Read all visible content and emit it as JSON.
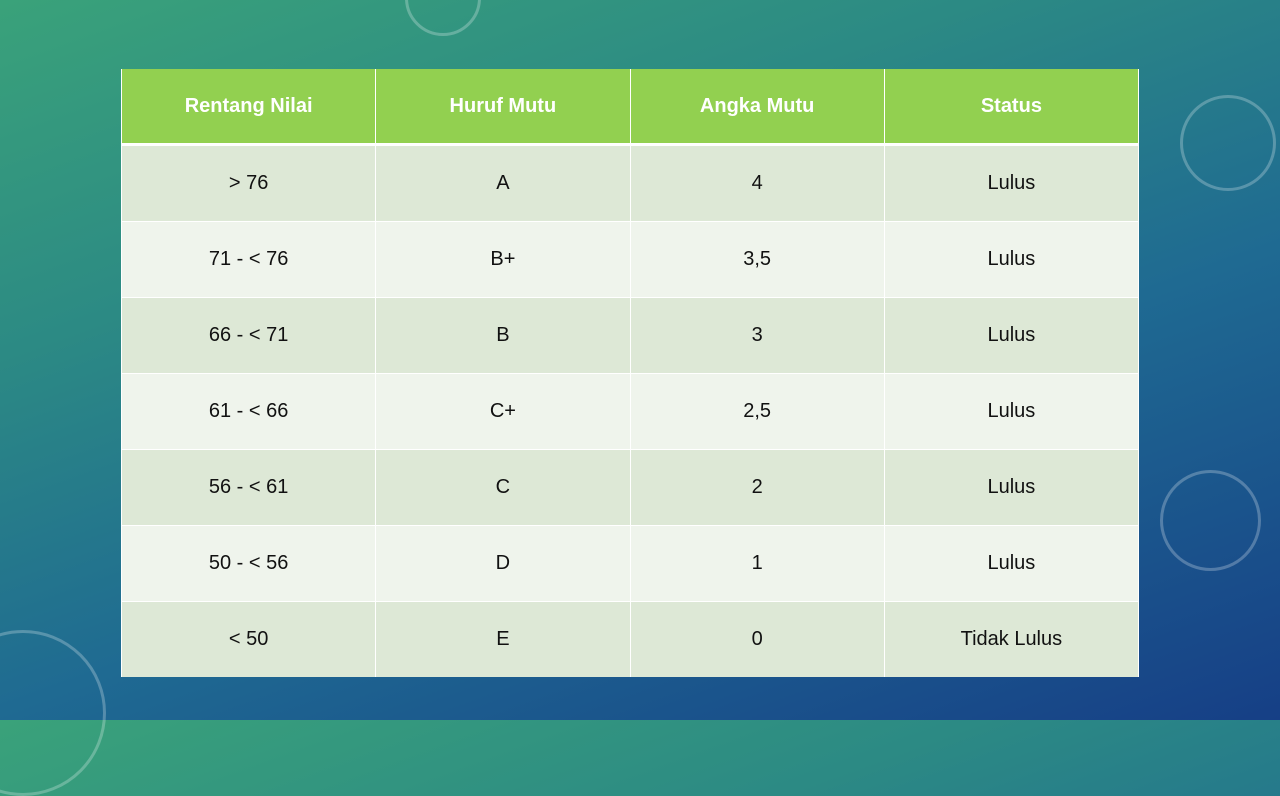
{
  "table": {
    "headers": [
      "Rentang Nilai",
      "Huruf Mutu",
      "Angka Mutu",
      "Status"
    ],
    "rows": [
      [
        "> 76",
        "A",
        "4",
        "Lulus"
      ],
      [
        "71 - < 76",
        "B+",
        "3,5",
        "Lulus"
      ],
      [
        "66 - < 71",
        "B",
        "3",
        "Lulus"
      ],
      [
        "61 - < 66",
        "C+",
        "2,5",
        "Lulus"
      ],
      [
        "56 - < 61",
        "C",
        "2",
        "Lulus"
      ],
      [
        "50 - < 56",
        "D",
        "1",
        "Lulus"
      ],
      [
        "< 50",
        "E",
        "0",
        "Tidak Lulus"
      ]
    ]
  },
  "colors": {
    "header": "#92d050",
    "row_odd": "#dde8d6",
    "row_even": "#eff4ec"
  }
}
